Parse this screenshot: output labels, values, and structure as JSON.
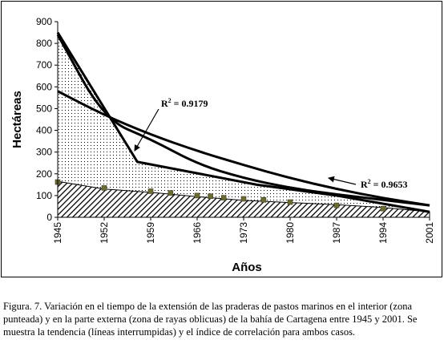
{
  "chart_data": {
    "type": "area",
    "xlabel": "Años",
    "ylabel": "Hectáreas",
    "x_ticks": [
      1945,
      1952,
      1959,
      1966,
      1973,
      1980,
      1987,
      1994,
      2001
    ],
    "y_ticks": [
      0,
      100,
      200,
      300,
      400,
      500,
      600,
      700,
      800,
      900
    ],
    "xlim": [
      1945,
      2001
    ],
    "ylim": [
      0,
      900
    ],
    "grid": false,
    "legend": "none",
    "series": [
      {
        "fill": "dotted",
        "x": [
          1945,
          1957,
          1975,
          1987,
          2001
        ],
        "values": [
          850,
          255,
          150,
          100,
          25
        ]
      },
      {
        "fill": "diagonal-hatch",
        "x": [
          1945,
          1952,
          1959,
          1966,
          1973,
          1980,
          1987,
          1994,
          2001
        ],
        "values": [
          165,
          130,
          115,
          95,
          78,
          68,
          58,
          45,
          25
        ]
      }
    ],
    "markers": {
      "x": [
        1945,
        1952,
        1959,
        1962,
        1966,
        1968,
        1970,
        1973,
        1976,
        1980,
        1987,
        1994
      ],
      "values": [
        162,
        135,
        120,
        112,
        100,
        97,
        90,
        85,
        80,
        70,
        55,
        40
      ]
    },
    "trendlines": [
      {
        "x": [
          1945,
          1952,
          1959,
          1966,
          1973,
          1980,
          1987,
          1994,
          2001
        ],
        "values": [
          580,
          470,
          380,
          305,
          240,
          180,
          130,
          88,
          55
        ],
        "r2_label": "R",
        "r2_sup": "2",
        "r2_value": " = 0.9179"
      },
      {
        "x": [
          1945,
          1952,
          1959,
          1966,
          1973,
          1980,
          1987,
          1994,
          2001
        ],
        "values": [
          840,
          450,
          360,
          245,
          180,
          135,
          105,
          80,
          55
        ],
        "r2_label": "R",
        "r2_sup": "2",
        "r2_value": " = 0.9653"
      }
    ]
  },
  "caption": "Figura. 7. Variación en el tiempo de la extensión de las praderas de pastos marinos en el interior (zona punteada) y en la parte externa (zona de rayas oblicuas) de la bahía de Cartagena entre 1945 y 2001.  Se muestra la tendencia (líneas interrumpidas) y el índice de correlación para ambos casos."
}
